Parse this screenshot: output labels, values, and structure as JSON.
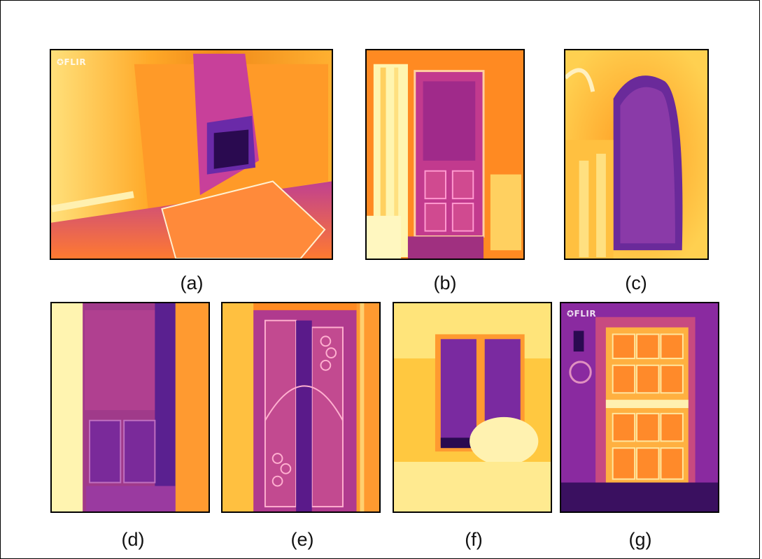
{
  "panels": [
    {
      "id": "a",
      "caption": "(a)",
      "logo": "✪FLIR"
    },
    {
      "id": "b",
      "caption": "(b)"
    },
    {
      "id": "c",
      "caption": "(c)"
    },
    {
      "id": "d",
      "caption": "(d)"
    },
    {
      "id": "e",
      "caption": "(e)"
    },
    {
      "id": "f",
      "caption": "(f)"
    },
    {
      "id": "g",
      "caption": "(g)",
      "logo": "✪FLIR"
    }
  ],
  "palette": {
    "hot": "#fff8a0",
    "warm": "#ffb020",
    "mid": "#ff7a18",
    "cool": "#c0308a",
    "cold": "#5a1a9a",
    "coldest": "#1a0a40"
  }
}
